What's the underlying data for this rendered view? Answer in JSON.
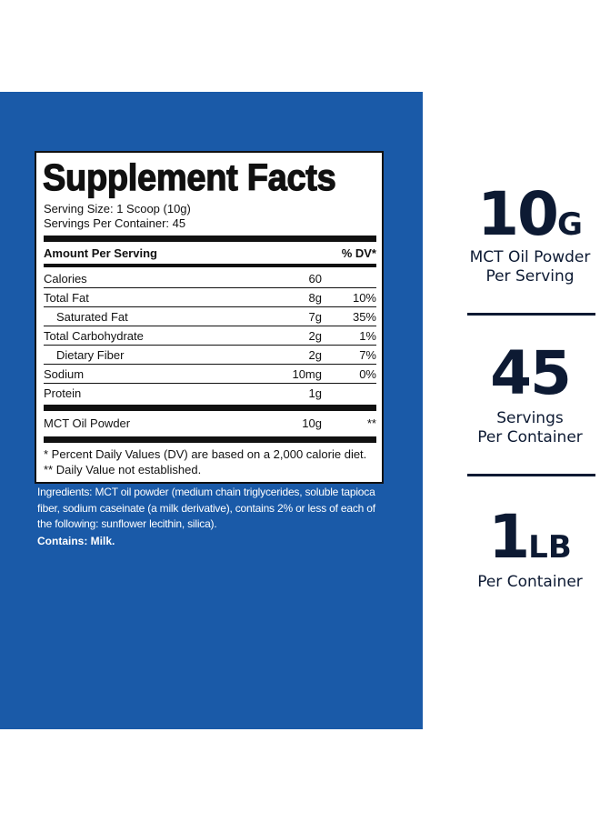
{
  "facts": {
    "title": "Supplement Facts",
    "serving_size": "Serving Size: 1 Scoop (10g)",
    "servings_per_container": "Servings Per Container: 45",
    "header_amount": "Amount Per Serving",
    "header_dv": "% DV*",
    "rows": [
      {
        "name": "Calories",
        "amount": "60",
        "dv": ""
      },
      {
        "name": "Total Fat",
        "amount": "8g",
        "dv": "10%"
      },
      {
        "name": "Saturated Fat",
        "amount": "7g",
        "dv": "35%"
      },
      {
        "name": "Total Carbohydrate",
        "amount": "2g",
        "dv": "1%"
      },
      {
        "name": "Dietary Fiber",
        "amount": "2g",
        "dv": "7%"
      },
      {
        "name": "Sodium",
        "amount": "10mg",
        "dv": "0%"
      },
      {
        "name": "Protein",
        "amount": "1g",
        "dv": ""
      },
      {
        "name": "MCT Oil Powder",
        "amount": "10g",
        "dv": "**"
      }
    ],
    "footnote_1": "* Percent Daily Values (DV) are based on a 2,000 calorie diet.",
    "footnote_2": "** Daily Value not established."
  },
  "ingredients": "Ingredients: MCT oil powder (medium chain triglycerides, soluble tapioca fiber, sodium caseinate (a milk derivative), contains 2% or less of each of the following: sunflower lecithin, silica).",
  "contains": "Contains: Milk.",
  "stats": [
    {
      "number": "10",
      "unit": "G",
      "line1": "MCT Oil Powder",
      "line2": "Per Serving"
    },
    {
      "number": "45",
      "unit": "",
      "line1": "Servings",
      "line2": "Per Container"
    },
    {
      "number": "1",
      "unit": "LB",
      "line1": "Per Container",
      "line2": ""
    }
  ],
  "colors": {
    "panel_blue": "#1a5aa8",
    "stat_navy": "#0d1a33"
  }
}
